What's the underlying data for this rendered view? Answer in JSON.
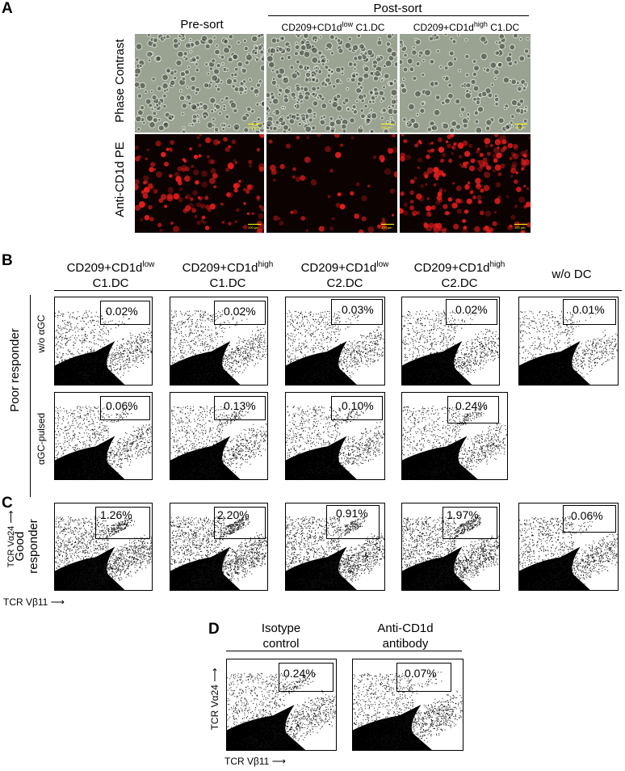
{
  "panels": {
    "A": {
      "label": "A",
      "col_headers": [
        "Pre-sort",
        "CD209+CD1d",
        "CD209+CD1d"
      ],
      "col_sup": [
        "",
        "low",
        "high"
      ],
      "col_suffix": [
        "",
        " C1.DC",
        " C1.DC"
      ],
      "group_header": "Post-sort",
      "row_labels": [
        "Phase Contrast",
        "Anti-CD1d PE"
      ],
      "scale_bar": "100 µm"
    },
    "B": {
      "label": "B",
      "columns": [
        {
          "main": "CD209+CD1d",
          "sup": "low",
          "sub": "C1.DC"
        },
        {
          "main": "CD209+CD1d",
          "sup": "high",
          "sub": "C1.DC"
        },
        {
          "main": "CD209+CD1d",
          "sup": "low",
          "sub": "C2.DC"
        },
        {
          "main": "CD209+CD1d",
          "sup": "high",
          "sub": "C2.DC"
        },
        {
          "main": "w/o DC",
          "sup": "",
          "sub": ""
        }
      ],
      "group_label": "Poor responder",
      "row_labels": [
        "w/o αGC",
        "αGC-pulsed"
      ],
      "row1_values": [
        "0.02%",
        "0.02%",
        "0.03%",
        "0.02%",
        "0.01%"
      ],
      "row2_values": [
        "0.06%",
        "0.13%",
        "0.10%",
        "0.24%"
      ]
    },
    "C": {
      "label": "C",
      "group_label": "Good responder",
      "values": [
        "1.26%",
        "2.20%",
        "0.91%",
        "1.97%",
        "0.06%"
      ],
      "y_axis": "TCR Vα24",
      "x_axis": "TCR Vβ11"
    },
    "D": {
      "label": "D",
      "columns": [
        "Isotype control",
        "Anti-CD1d antibody"
      ],
      "col_lines": [
        [
          "Isotype",
          "control"
        ],
        [
          "Anti-CD1d",
          "antibody"
        ]
      ],
      "values": [
        "0.24%",
        "0.07%"
      ],
      "y_axis": "TCR Vα24",
      "x_axis": "TCR Vβ11"
    }
  }
}
